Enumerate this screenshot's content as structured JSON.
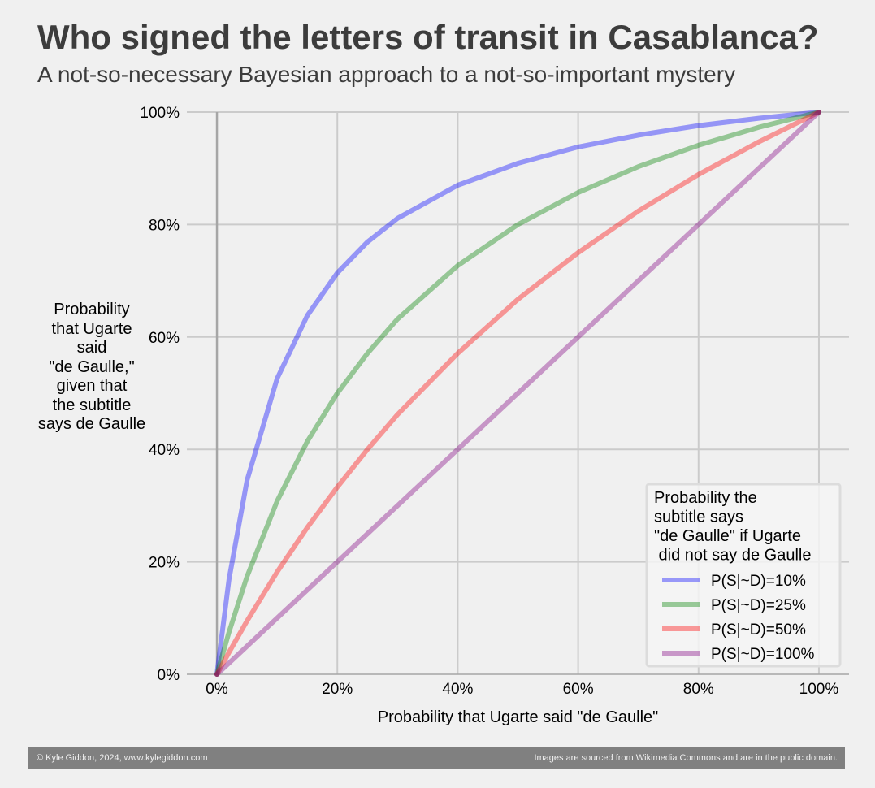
{
  "chart_data": {
    "type": "line",
    "title": "Who signed the letters of transit in Casablanca?",
    "subtitle": "A not-so-necessary Bayesian approach to a not-so-important mystery",
    "xlabel": "Probability that Ugarte said \"de Gaulle\"",
    "ylabel": "Probability\nthat Ugarte\nsaid\n\"de Gaulle,\"\ngiven that\nthe subtitle\nsays de Gaulle",
    "xlim": [
      -0.05,
      1.05
    ],
    "ylim": [
      0,
      1
    ],
    "xticks": [
      0,
      0.2,
      0.4,
      0.6,
      0.8,
      1.0
    ],
    "xticklabels": [
      "0%",
      "20%",
      "40%",
      "60%",
      "80%",
      "100%"
    ],
    "yticks": [
      0,
      0.2,
      0.4,
      0.6,
      0.8,
      1.0
    ],
    "yticklabels": [
      "0%",
      "20%",
      "40%",
      "60%",
      "80%",
      "100%"
    ],
    "grid": true,
    "x": [
      0,
      0.02,
      0.05,
      0.1,
      0.15,
      0.2,
      0.25,
      0.3,
      0.4,
      0.5,
      0.6,
      0.7,
      0.8,
      0.9,
      1.0
    ],
    "series": [
      {
        "name": "P(S|~D)=10%",
        "color": "#0000ff",
        "values": [
          0,
          0.169,
          0.345,
          0.526,
          0.638,
          0.714,
          0.769,
          0.811,
          0.87,
          0.909,
          0.938,
          0.959,
          0.976,
          0.989,
          1.0
        ]
      },
      {
        "name": "P(S|~D)=25%",
        "color": "#008000",
        "values": [
          0,
          0.075,
          0.174,
          0.308,
          0.414,
          0.5,
          0.571,
          0.632,
          0.727,
          0.8,
          0.857,
          0.903,
          0.941,
          0.973,
          1.0
        ]
      },
      {
        "name": "P(S|~D)=50%",
        "color": "#ff0000",
        "values": [
          0,
          0.039,
          0.095,
          0.182,
          0.261,
          0.333,
          0.4,
          0.462,
          0.571,
          0.667,
          0.75,
          0.824,
          0.889,
          0.947,
          1.0
        ]
      },
      {
        "name": "P(S|~D)=100%",
        "color": "#800080",
        "values": [
          0,
          0.02,
          0.05,
          0.1,
          0.15,
          0.2,
          0.25,
          0.3,
          0.4,
          0.5,
          0.6,
          0.7,
          0.8,
          0.9,
          1.0
        ]
      }
    ],
    "legend": {
      "title": "Probability the\nsubtitle says\n\"de Gaulle\" if Ugarte\n did not say de Gaulle",
      "placement": "lower-right"
    }
  },
  "footer": {
    "left": "© Kyle Giddon, 2024, www.kylegiddon.com",
    "right": "Images are sourced from Wikimedia Commons and are in the public domain."
  }
}
